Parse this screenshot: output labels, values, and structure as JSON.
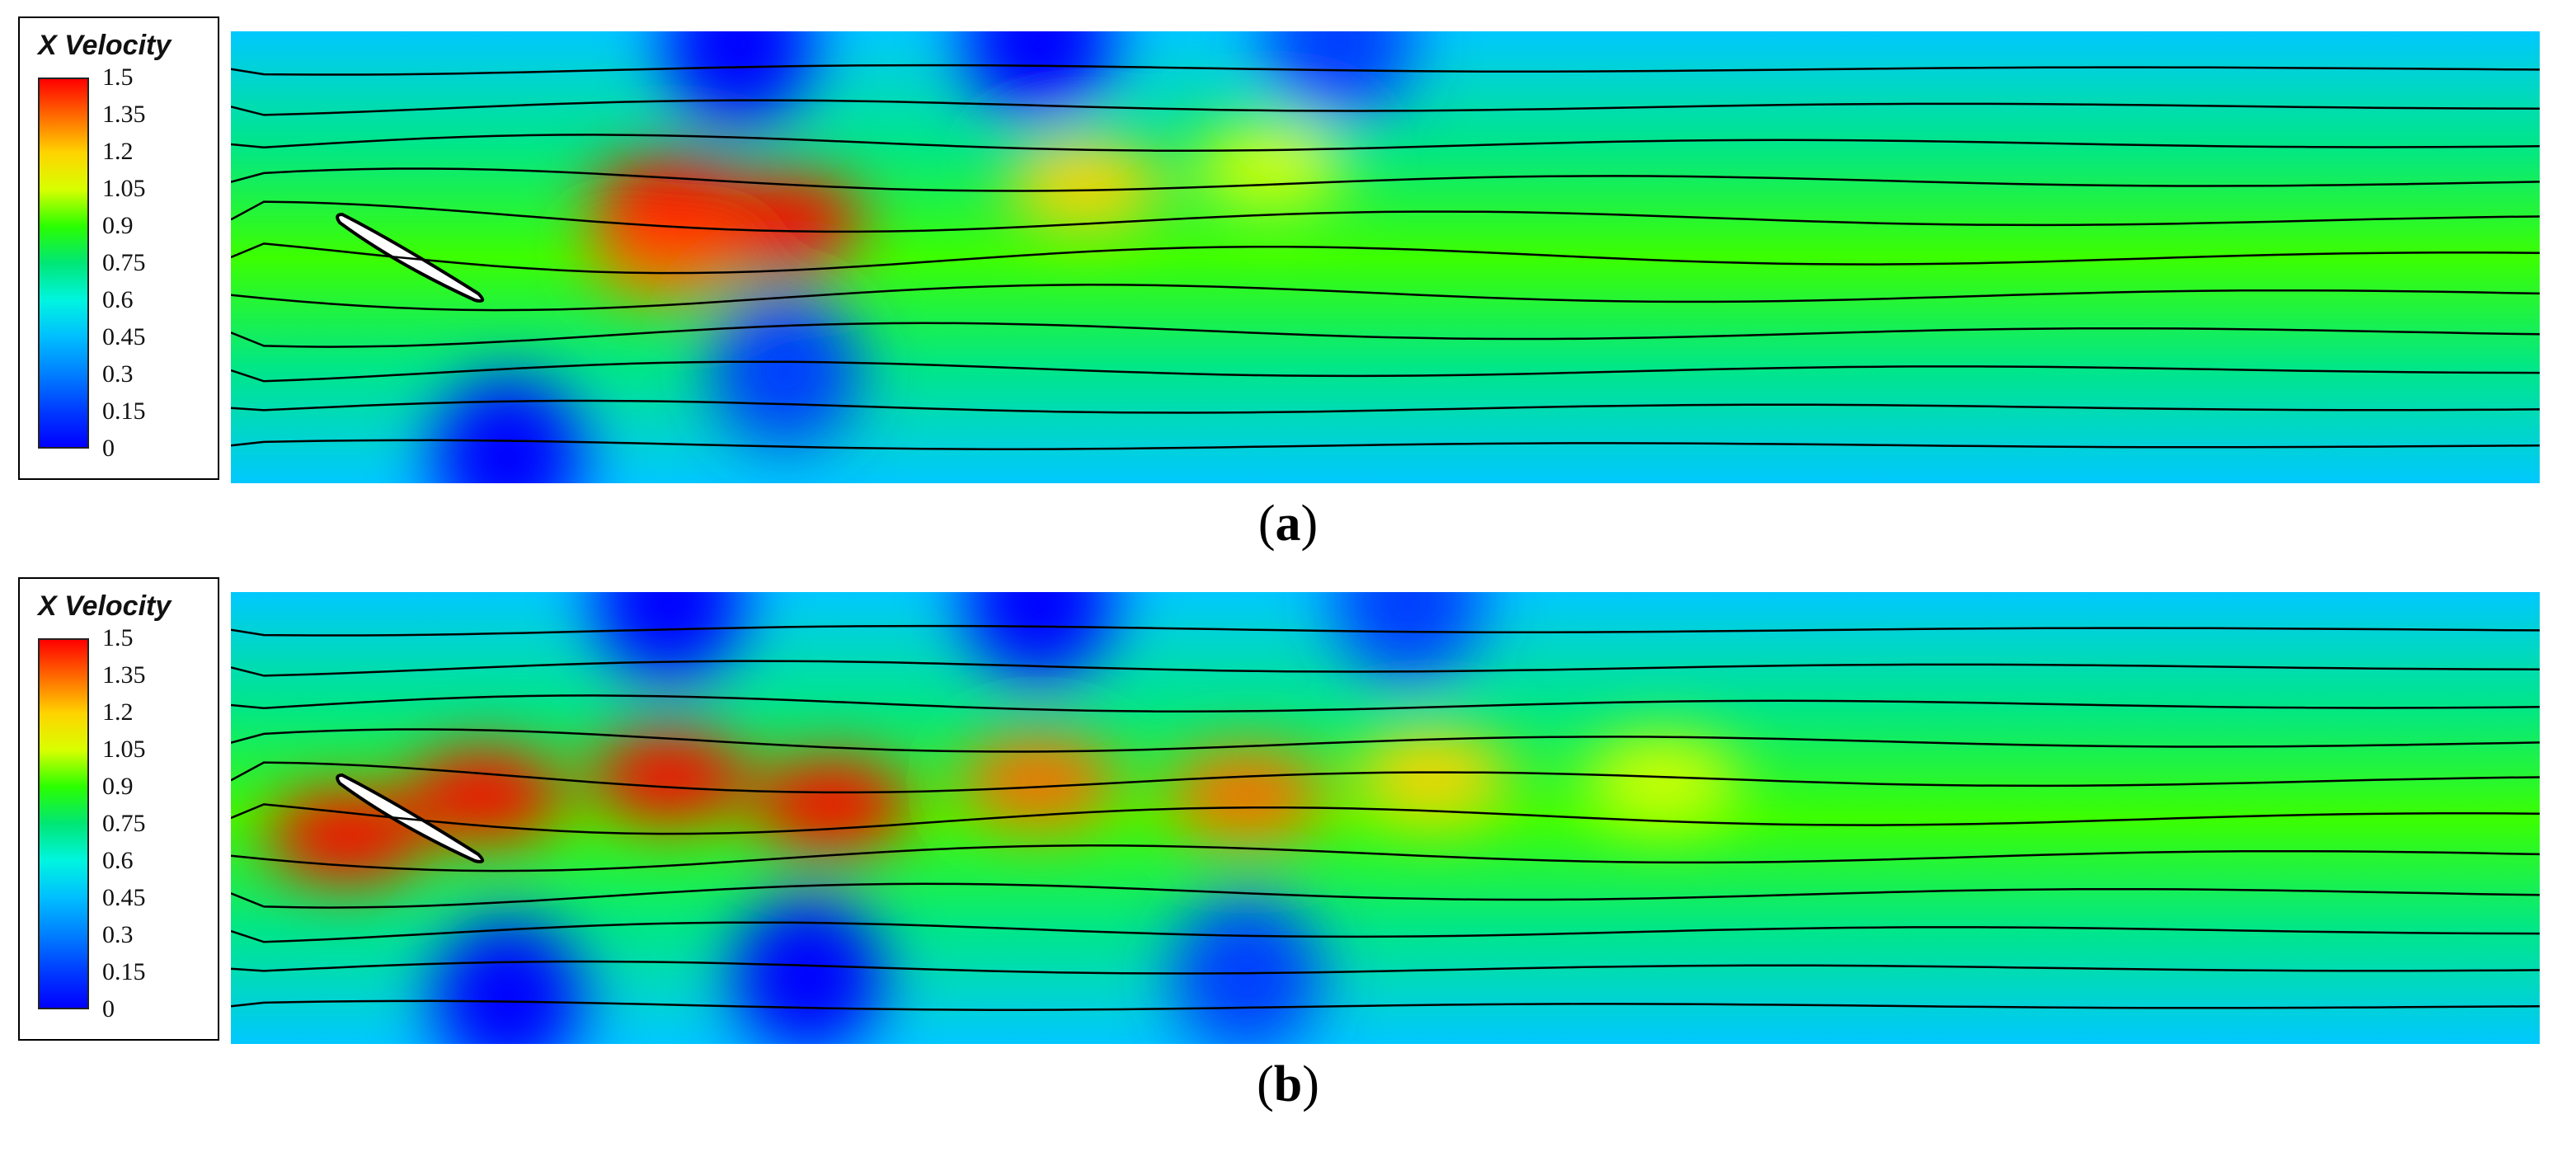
{
  "chart_data": [
    {
      "type": "heatmap",
      "panel": "a",
      "caption_letter": "a",
      "legend_title": "X Velocity",
      "colorbar": {
        "min": 0,
        "max": 1.5,
        "ticks": [
          "1.5",
          "1.35",
          "1.2",
          "1.05",
          "0.9",
          "0.75",
          "0.6",
          "0.45",
          "0.3",
          "0.15",
          "0"
        ],
        "colors": [
          "#ff0000",
          "#ff6a00",
          "#ffd400",
          "#d8ff00",
          "#2aff00",
          "#00e676",
          "#00f5e0",
          "#00bfff",
          "#0080ff",
          "#003cff",
          "#0000ff"
        ]
      },
      "x_range": [
        0,
        1
      ],
      "y_range": [
        0,
        1
      ],
      "high_velocity_regions": [
        {
          "x": 0.19,
          "y": 0.51,
          "value": 1.35
        },
        {
          "x": 0.19,
          "y": 0.62,
          "value": 1.45
        },
        {
          "x": 0.24,
          "y": 0.58,
          "value": 1.45
        },
        {
          "x": 0.37,
          "y": 0.66,
          "value": 1.15
        },
        {
          "x": 0.45,
          "y": 0.7,
          "value": 1.1
        }
      ],
      "low_velocity_regions": [
        {
          "x": 0.12,
          "y": 0.06,
          "value": 0.0
        },
        {
          "x": 0.22,
          "y": 0.97,
          "value": 0.05
        },
        {
          "x": 0.35,
          "y": 0.98,
          "value": 0.05
        },
        {
          "x": 0.48,
          "y": 0.98,
          "value": 0.2
        },
        {
          "x": 0.24,
          "y": 0.25,
          "value": 0.1
        }
      ]
    },
    {
      "type": "heatmap",
      "panel": "b",
      "caption_letter": "b",
      "legend_title": "X Velocity",
      "colorbar": {
        "min": 0,
        "max": 1.5,
        "ticks": [
          "1.5",
          "1.35",
          "1.2",
          "1.05",
          "0.9",
          "0.75",
          "0.6",
          "0.45",
          "0.3",
          "0.15",
          "0"
        ],
        "colors": [
          "#ff0000",
          "#ff6a00",
          "#ffd400",
          "#d8ff00",
          "#2aff00",
          "#00e676",
          "#00f5e0",
          "#00bfff",
          "#0080ff",
          "#003cff",
          "#0000ff"
        ]
      },
      "x_range": [
        0,
        1
      ],
      "y_range": [
        0,
        1
      ],
      "high_velocity_regions": [
        {
          "x": 0.05,
          "y": 0.46,
          "value": 1.45
        },
        {
          "x": 0.11,
          "y": 0.55,
          "value": 1.45
        },
        {
          "x": 0.19,
          "y": 0.59,
          "value": 1.45
        },
        {
          "x": 0.26,
          "y": 0.53,
          "value": 1.45
        },
        {
          "x": 0.35,
          "y": 0.58,
          "value": 1.3
        },
        {
          "x": 0.44,
          "y": 0.55,
          "value": 1.3
        },
        {
          "x": 0.52,
          "y": 0.59,
          "value": 1.2
        },
        {
          "x": 0.62,
          "y": 0.58,
          "value": 1.1
        }
      ],
      "low_velocity_regions": [
        {
          "x": 0.12,
          "y": 0.1,
          "value": 0.0
        },
        {
          "x": 0.19,
          "y": 0.98,
          "value": 0.05
        },
        {
          "x": 0.35,
          "y": 0.98,
          "value": 0.05
        },
        {
          "x": 0.51,
          "y": 0.98,
          "value": 0.1
        },
        {
          "x": 0.25,
          "y": 0.15,
          "value": 0.05
        },
        {
          "x": 0.44,
          "y": 0.15,
          "value": 0.15
        }
      ]
    }
  ]
}
